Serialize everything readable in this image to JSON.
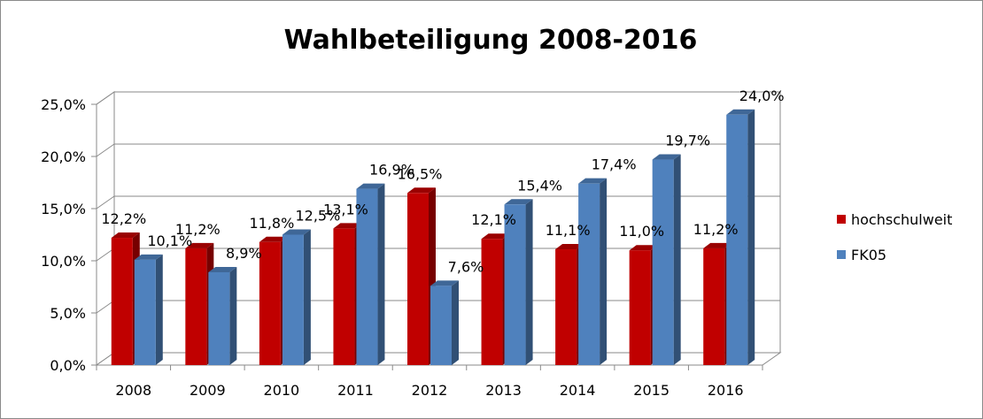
{
  "chart_data": {
    "type": "bar",
    "title": "Wahlbeteiligung 2008-2016",
    "categories": [
      "2008",
      "2009",
      "2010",
      "2011",
      "2012",
      "2013",
      "2014",
      "2015",
      "2016"
    ],
    "series": [
      {
        "name": "hochschulweit",
        "color": "#c00000",
        "values": [
          12.2,
          11.2,
          11.8,
          13.1,
          16.5,
          12.1,
          11.1,
          11.0,
          11.2
        ],
        "labels": [
          "12,2%",
          "11,2%",
          "11,8%",
          "13,1%",
          "16,5%",
          "12,1%",
          "11,1%",
          "11,0%",
          "11,2%"
        ]
      },
      {
        "name": "FK05",
        "color": "#4f81bd",
        "values": [
          10.1,
          8.9,
          12.5,
          16.9,
          7.6,
          15.4,
          17.4,
          19.7,
          24.0
        ],
        "labels": [
          "10,1%",
          "8,9%",
          "12,5%",
          "16,9%",
          "7,6%",
          "15,4%",
          "17,4%",
          "19,7%",
          "24,0%"
        ]
      }
    ],
    "yticks": [
      0,
      5,
      10,
      15,
      20,
      25
    ],
    "ytick_labels": [
      "0,0%",
      "5,0%",
      "10,0%",
      "15,0%",
      "20,0%",
      "25,0%"
    ],
    "ylim": [
      0,
      25
    ],
    "grid": true,
    "legend_position": "right",
    "style": "3d-clustered"
  }
}
